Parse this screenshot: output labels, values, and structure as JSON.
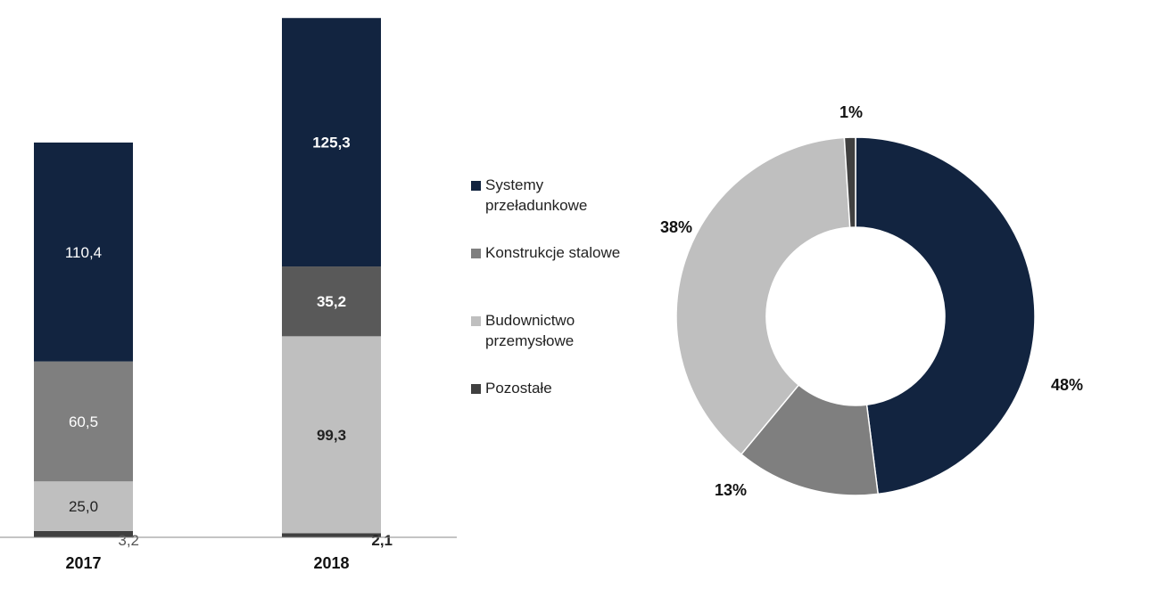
{
  "colors": {
    "systemy": "#122440",
    "konstrukcje": "#7f7f7f",
    "budownictwo": "#bfbfbf",
    "pozostale": "#404040",
    "konstrukcje_2018": "#595959",
    "axis": "#888888"
  },
  "legend": [
    {
      "key": "systemy",
      "label": "Systemy przeładunkowe"
    },
    {
      "key": "konstrukcje",
      "label": "Konstrukcje stalowe"
    },
    {
      "key": "budownictwo",
      "label": "Budownictwo przemysłowe"
    },
    {
      "key": "pozostale",
      "label": "Pozostałe"
    }
  ],
  "chart_data": [
    {
      "type": "bar",
      "stacked": true,
      "categories": [
        "2017",
        "2018"
      ],
      "series": [
        {
          "name": "Pozostałe",
          "values": [
            3.2,
            2.1
          ],
          "labels": [
            "3,2",
            "2,1"
          ]
        },
        {
          "name": "Budownictwo przemysłowe",
          "values": [
            25.0,
            99.3
          ],
          "labels": [
            "25,0",
            "99,3"
          ]
        },
        {
          "name": "Konstrukcje stalowe",
          "values": [
            60.5,
            35.2
          ],
          "labels": [
            "60,5",
            "35,2"
          ]
        },
        {
          "name": "Systemy przeładunkowe",
          "values": [
            110.4,
            125.3
          ],
          "labels": [
            "110,4",
            "125,3"
          ]
        }
      ],
      "ylim": [
        0,
        262
      ],
      "grid": false
    },
    {
      "type": "pie",
      "donut": true,
      "slices": [
        {
          "name": "Systemy przeładunkowe",
          "value": 48,
          "label": "48%"
        },
        {
          "name": "Konstrukcje stalowe",
          "value": 13,
          "label": "13%"
        },
        {
          "name": "Budownictwo przemysłowe",
          "value": 38,
          "label": "38%"
        },
        {
          "name": "Pozostałe",
          "value": 1,
          "label": "1%"
        }
      ]
    }
  ]
}
